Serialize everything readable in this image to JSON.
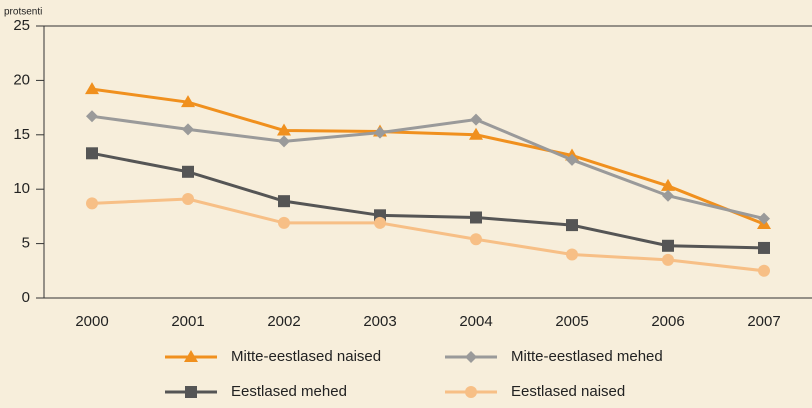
{
  "chart_data": {
    "type": "line",
    "y_label": "protsenti",
    "categories": [
      "2000",
      "2001",
      "2002",
      "2003",
      "2004",
      "2005",
      "2006",
      "2007"
    ],
    "ylim": [
      0,
      25
    ],
    "yticks": [
      0,
      5,
      10,
      15,
      20,
      25
    ],
    "series": [
      {
        "name": "Mitte-eestlased naised",
        "color": "#f0901e",
        "marker": "triangle",
        "values": [
          19.2,
          18.0,
          15.4,
          15.3,
          15.0,
          13.1,
          10.3,
          6.8
        ]
      },
      {
        "name": "Mitte-eestlased mehed",
        "color": "#9a9a9a",
        "marker": "diamond",
        "values": [
          16.7,
          15.5,
          14.4,
          15.2,
          16.4,
          12.7,
          9.4,
          7.3
        ]
      },
      {
        "name": "Eestlased mehed",
        "color": "#555555",
        "marker": "square",
        "values": [
          13.3,
          11.6,
          8.9,
          7.6,
          7.4,
          6.7,
          4.8,
          4.6
        ]
      },
      {
        "name": "Eestlased naised",
        "color": "#f7bf86",
        "marker": "circle",
        "values": [
          8.7,
          9.1,
          6.9,
          6.9,
          5.4,
          4.0,
          3.5,
          2.5
        ]
      }
    ]
  }
}
